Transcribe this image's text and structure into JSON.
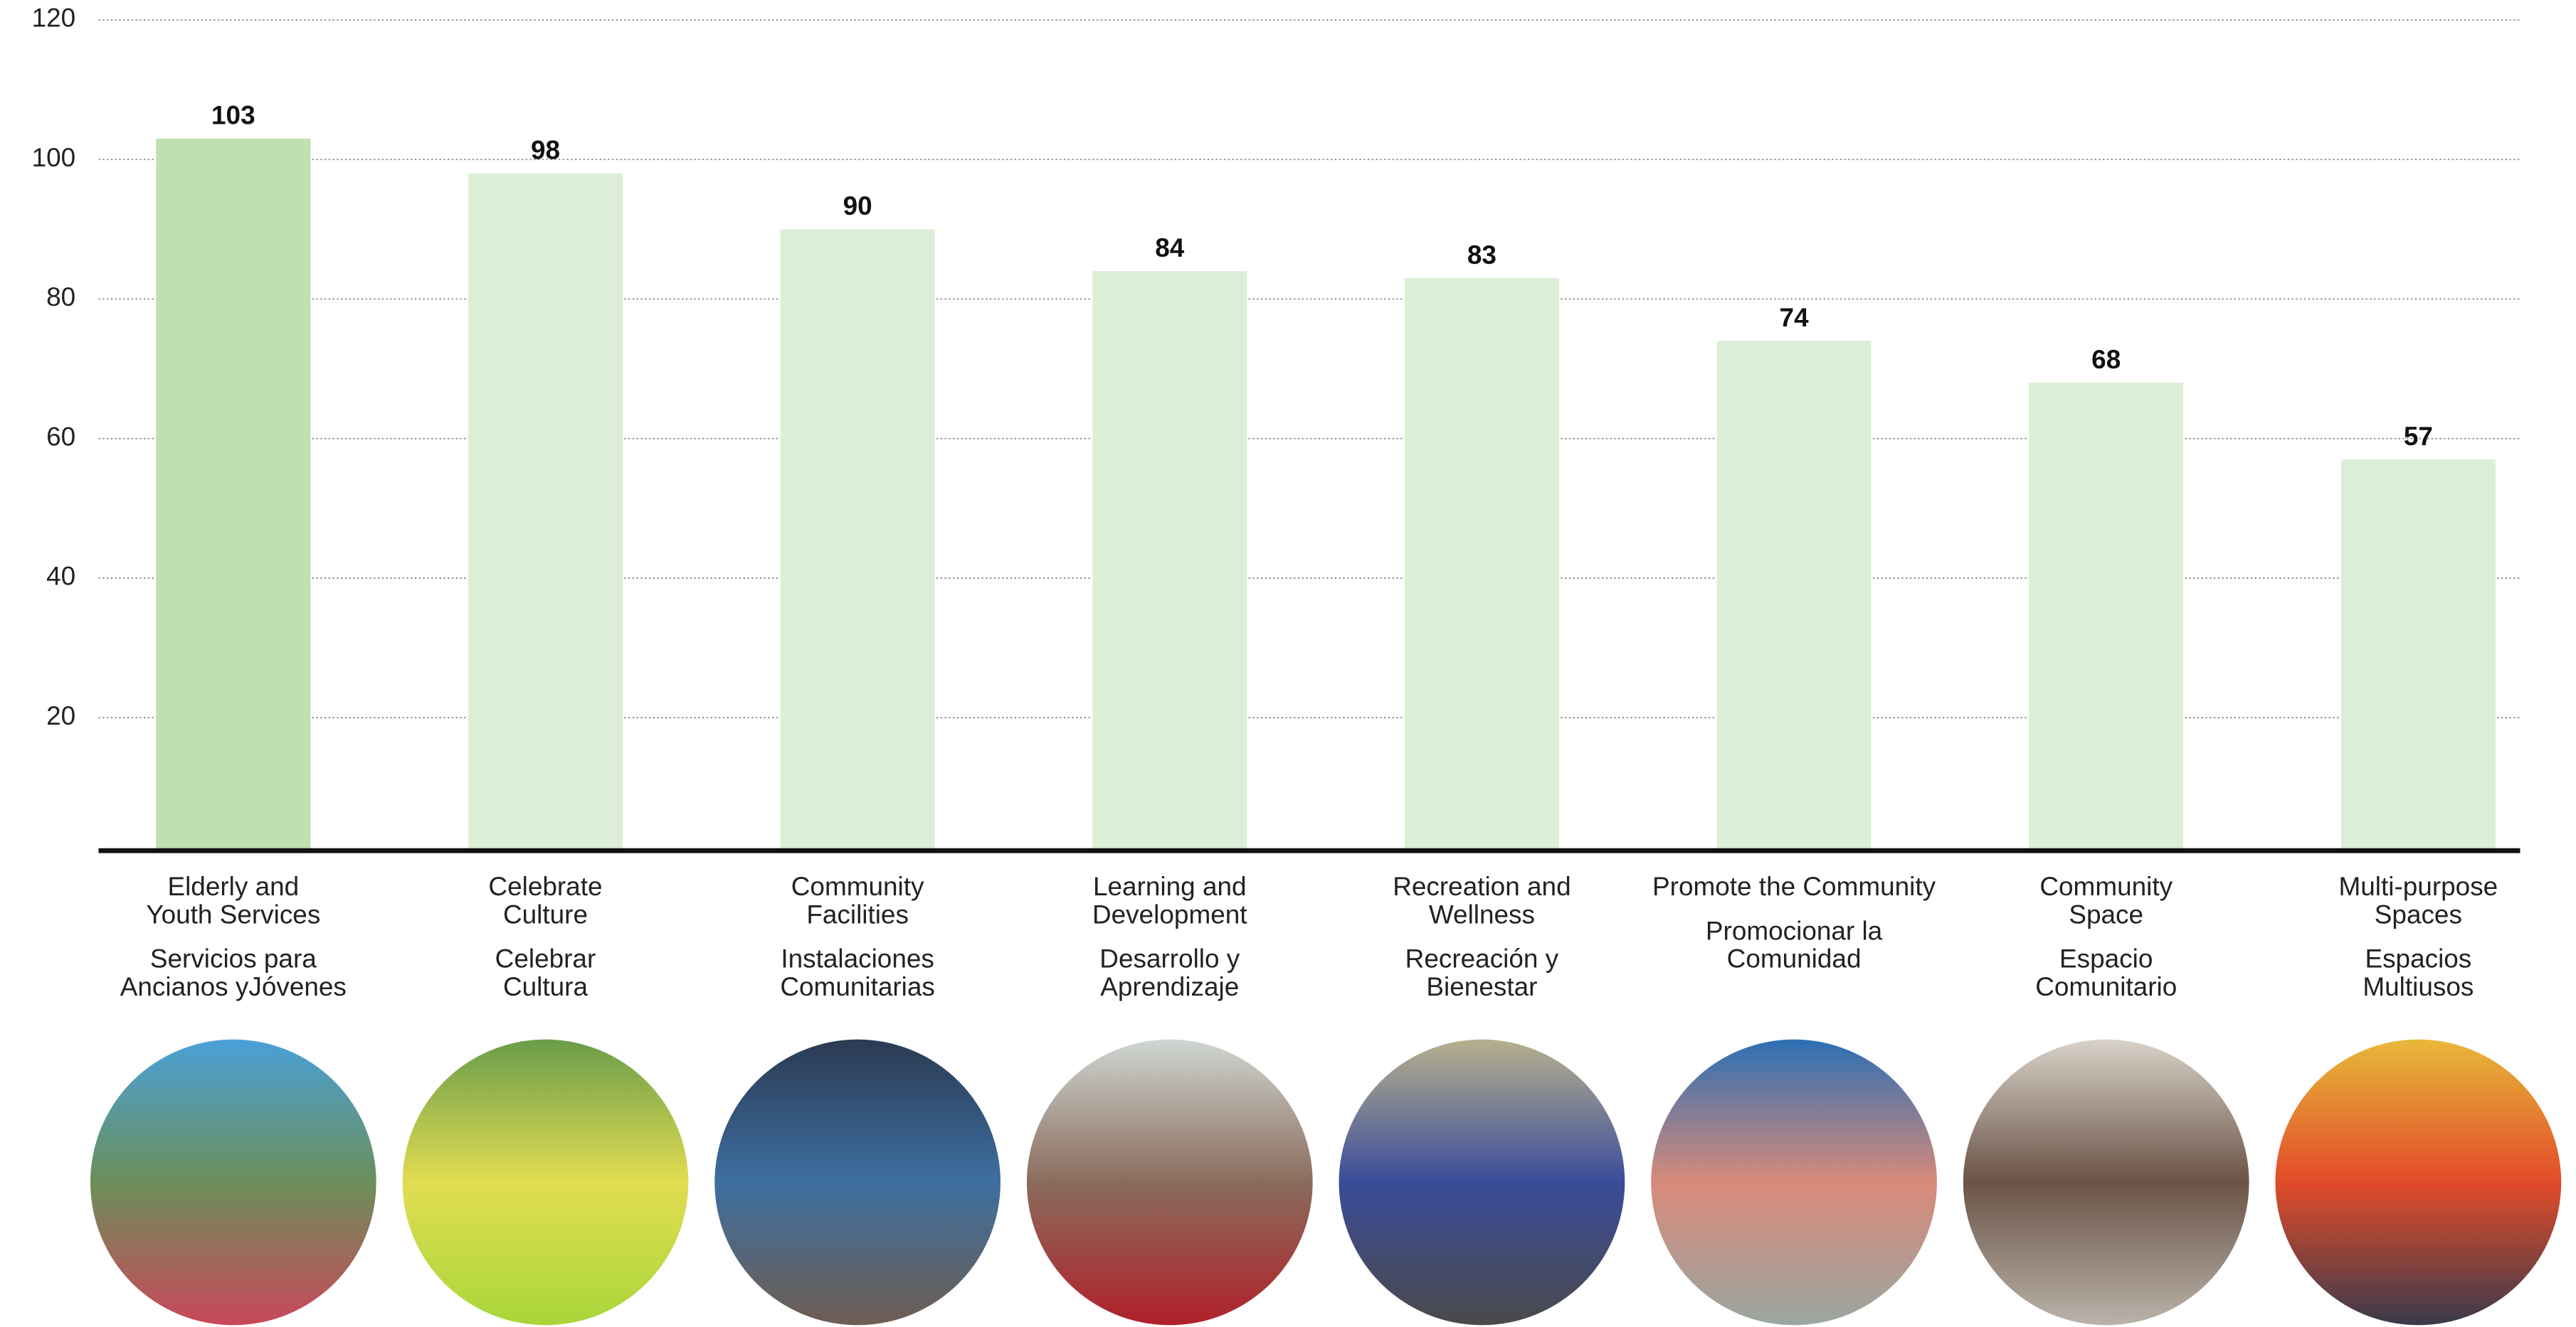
{
  "chart_data": {
    "type": "bar",
    "categories": [
      [
        "Elderly and",
        "Youth Services"
      ],
      [
        "Celebrate",
        "Culture"
      ],
      [
        "Community",
        "Facilities"
      ],
      [
        "Learning and",
        "Development"
      ],
      [
        "Recreation and",
        "Wellness"
      ],
      [
        "Promote the Community"
      ],
      [
        "Community",
        "Space"
      ],
      [
        "Multi-purpose",
        "Spaces"
      ]
    ],
    "categories_es": [
      [
        "Servicios para",
        "Ancianos yJóvenes"
      ],
      [
        "Celebrar",
        "Cultura"
      ],
      [
        "Instalaciones",
        "Comunitarias"
      ],
      [
        "Desarrollo y",
        "Aprendizaje"
      ],
      [
        "Recreación y",
        "Bienestar"
      ],
      [
        "Promocionar la",
        "Comunidad"
      ],
      [
        "Espacio",
        "Comunitario"
      ],
      [
        "Espacios",
        "Multiusos"
      ]
    ],
    "values": [
      103,
      98,
      90,
      84,
      83,
      74,
      68,
      57
    ],
    "colors": [
      "#bfe0b0",
      "#dcefd6",
      "#dcefd6",
      "#dcefd6",
      "#dcefd6",
      "#dcefd6",
      "#dcefd6",
      "#dcefd6"
    ],
    "ylim": [
      0,
      120
    ],
    "yticks": [
      20,
      40,
      60,
      80,
      100,
      120
    ],
    "grid": true
  }
}
